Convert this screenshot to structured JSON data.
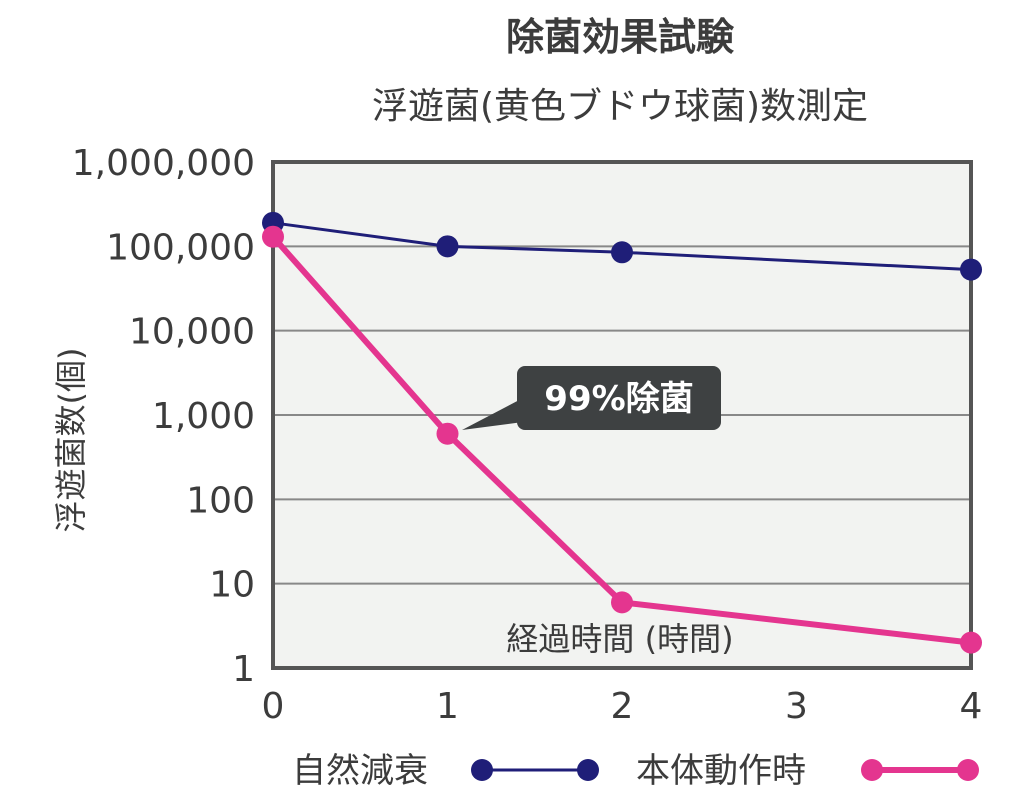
{
  "chart_data": {
    "type": "line",
    "title": "除菌効果試験",
    "subtitle": "浮遊菌(黄色ブドウ球菌)数測定",
    "xlabel": "経過時間 (時間)",
    "ylabel": "浮遊菌数(個)",
    "yscale": "log",
    "ylim": [
      1,
      1000000
    ],
    "xlim": [
      0,
      4
    ],
    "x_ticks": [
      "0",
      "1",
      "2",
      "3",
      "4"
    ],
    "y_ticks": [
      "1",
      "10",
      "100",
      "1,000",
      "10,000",
      "100,000",
      "1,000,000"
    ],
    "grid": true,
    "plot_background": "#f2f3f1",
    "legend_position": "bottom",
    "series": [
      {
        "name": "自然減衰",
        "color": "#1f1e78",
        "x": [
          0,
          1,
          2,
          4
        ],
        "y": [
          190000,
          100000,
          85000,
          53000
        ]
      },
      {
        "name": "本体動作時",
        "color": "#e4358f",
        "x": [
          0,
          1,
          2,
          4
        ],
        "y": [
          130000,
          600,
          6,
          2
        ]
      }
    ],
    "annotations": [
      {
        "text": "99%除菌",
        "x": 1,
        "y": 600
      }
    ]
  }
}
